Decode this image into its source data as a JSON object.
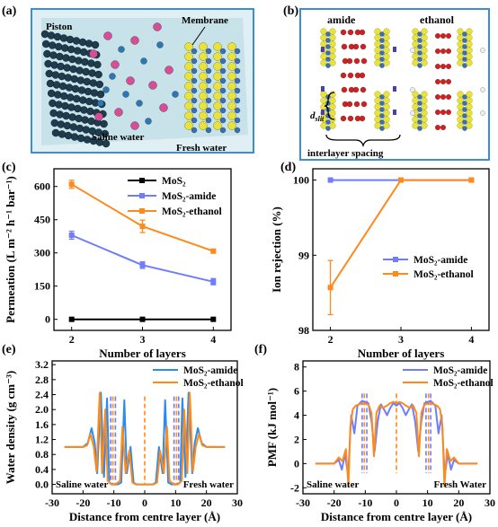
{
  "colors": {
    "frame_blue": "#3b8fd0",
    "black": "#000000",
    "amide": "#6f7cff",
    "ethanol": "#ff8a1c",
    "water_amide": "#2a8cf0",
    "sulfur": "#e8e23a",
    "molybdenum": "#3c6fb0",
    "oxygen": "#cc2222",
    "nitrogen": "#4a3fb0",
    "ion_pink": "#d64d98",
    "ion_blue": "#2a78b8"
  },
  "panels": {
    "a": {
      "label": "(a)",
      "texts": {
        "piston": "Piston",
        "membrane": "Membrane",
        "saline": "Saline water",
        "fresh": "Fresh water"
      }
    },
    "b": {
      "label": "(b)",
      "texts": {
        "amide": "amide",
        "ethanol": "ethanol",
        "dslit": "d",
        "dslit_sub": "slit",
        "spacing": "interlayer spacing"
      }
    }
  },
  "chart_data": [
    {
      "panel": "(c)",
      "type": "line",
      "xlabel": "Number of layers",
      "ylabel": "Permeation (L m⁻² h⁻¹ bar⁻¹)",
      "x": [
        2,
        3,
        4
      ],
      "xticks": [
        "2",
        "3",
        "4"
      ],
      "ylim": [
        -50,
        680
      ],
      "yticks": [
        0,
        150,
        300,
        450,
        600
      ],
      "legend_position": "top-right",
      "series": [
        {
          "name": "MoS₂",
          "color": "#000000",
          "values": [
            0,
            0,
            0
          ],
          "errors": [
            0,
            0,
            0
          ]
        },
        {
          "name": "MoS₂-amide",
          "color": "#6f7cff",
          "values": [
            380,
            245,
            170
          ],
          "errors": [
            18,
            15,
            14
          ]
        },
        {
          "name": "MoS₂-ethanol",
          "color": "#ff8a1c",
          "values": [
            610,
            420,
            308
          ],
          "errors": [
            18,
            28,
            8
          ]
        }
      ]
    },
    {
      "panel": "(d)",
      "type": "line",
      "xlabel": "Number of layers",
      "ylabel": "Ion rejection (%)",
      "x": [
        2,
        3,
        4
      ],
      "xticks": [
        "2",
        "3",
        "4"
      ],
      "ylim": [
        98,
        100.15
      ],
      "yticks": [
        98,
        99,
        100
      ],
      "legend_position": "center-right",
      "series": [
        {
          "name": "MoS₂-amide",
          "color": "#6f7cff",
          "values": [
            100,
            100,
            100
          ],
          "errors": [
            0,
            0,
            0
          ]
        },
        {
          "name": "MoS₂-ethanol",
          "color": "#ff8a1c",
          "values": [
            98.57,
            100,
            100
          ],
          "errors": [
            0.36,
            0,
            0
          ]
        }
      ]
    },
    {
      "panel": "(e)",
      "type": "line",
      "xlabel": "Distance from centre layer (Å)",
      "ylabel": "Water density (g cm⁻³)",
      "xlim": [
        -30,
        30
      ],
      "xticks": [
        -30,
        -20,
        -10,
        0,
        10,
        20,
        30
      ],
      "ylim": [
        -0.25,
        3.3
      ],
      "yticks": [
        0.0,
        0.4,
        0.8,
        1.2,
        1.6,
        2.0,
        2.4,
        2.8,
        3.2
      ],
      "legend_position": "top-right",
      "annotations": [
        "Saline water",
        "Fresh water"
      ],
      "series": [
        {
          "name": "MoS₂-amide",
          "color": "#2a8cf0",
          "x": [
            -26,
            -20,
            -18.5,
            -17.2,
            -16.2,
            -15.4,
            -14.2,
            -13.2,
            -12.2,
            -11.5,
            -10.2,
            -8.8,
            -7.6,
            -6.6,
            -5.8,
            -4.6,
            -3.6,
            -2.6,
            -1.6,
            -0.4,
            0.4,
            1.6,
            2.6,
            3.6,
            4.6,
            5.8,
            6.6,
            7.6,
            8.8,
            10.2,
            11.5,
            12.2,
            13.2,
            14.2,
            15.4,
            16.2,
            17.2,
            18.5,
            20,
            26
          ],
          "y": [
            1.0,
            1.0,
            1.1,
            1.5,
            1.1,
            0.3,
            2.45,
            0.2,
            2.3,
            0.05,
            0.0,
            0.0,
            0.05,
            2.25,
            0.3,
            1.0,
            0.05,
            0.0,
            0.0,
            0.0,
            0.0,
            0.0,
            0.0,
            0.05,
            1.0,
            0.3,
            2.25,
            0.05,
            0.0,
            0.0,
            0.05,
            2.3,
            0.2,
            2.45,
            0.3,
            1.1,
            1.5,
            1.1,
            1.0,
            1.0
          ]
        },
        {
          "name": "MoS₂-ethanol",
          "color": "#ff8a1c",
          "x": [
            -26,
            -20,
            -18.6,
            -17.6,
            -16.5,
            -15.6,
            -14.6,
            -13.8,
            -12.8,
            -12.0,
            -10.8,
            -9.4,
            -8.0,
            -7.2,
            -6.2,
            -5.0,
            -4.0,
            -2.8,
            -1.6,
            -0.4,
            0.4,
            1.6,
            2.8,
            4.0,
            5.0,
            6.2,
            7.2,
            8.0,
            9.4,
            10.8,
            12.0,
            12.8,
            13.8,
            14.6,
            15.6,
            16.5,
            17.6,
            18.6,
            20,
            26
          ],
          "y": [
            1.0,
            1.0,
            1.05,
            1.35,
            1.0,
            0.35,
            2.45,
            0.3,
            2.0,
            0.1,
            0.0,
            0.0,
            0.1,
            1.55,
            0.3,
            0.9,
            0.05,
            0.0,
            0.0,
            0.0,
            0.0,
            0.0,
            0.0,
            0.05,
            0.9,
            0.3,
            1.55,
            0.1,
            0.0,
            0.0,
            0.1,
            2.0,
            0.3,
            2.45,
            0.35,
            1.0,
            1.35,
            1.05,
            1.0,
            1.0
          ]
        }
      ],
      "vlines": [
        {
          "color": "#6f7cff",
          "x": [
            -11.0,
            -9.5,
            9.5,
            11.0
          ]
        },
        {
          "color": "#ff8a1c",
          "x": [
            -10.3,
            0,
            10.3
          ]
        }
      ]
    },
    {
      "panel": "(f)",
      "type": "line",
      "xlabel": "Distance from centre layer (Å)",
      "ylabel": "PMF (kJ mol⁻¹)",
      "xlim": [
        -30,
        30
      ],
      "xticks": [
        -30,
        -20,
        -10,
        0,
        10,
        20,
        30
      ],
      "ylim": [
        -2.5,
        8.5
      ],
      "yticks": [
        -2,
        0,
        2,
        4,
        6,
        8
      ],
      "legend_position": "top-right",
      "annotations": [
        "Saline water",
        "Fresh Water"
      ],
      "series": [
        {
          "name": "MoS₂-amide",
          "color": "#6f7cff",
          "x": [
            -26,
            -20,
            -18.5,
            -17.5,
            -16.5,
            -15.5,
            -14.5,
            -13.5,
            -12.5,
            -11,
            -9,
            -8,
            -7,
            -6,
            -5,
            -4,
            -3,
            -2,
            -1,
            0,
            1,
            2,
            3,
            4,
            5,
            6,
            7,
            8,
            9,
            11,
            12.5,
            13.5,
            14.5,
            15.5,
            16.5,
            17.5,
            18.5,
            20,
            26
          ],
          "y": [
            0,
            0,
            0.3,
            -0.5,
            0.8,
            -1.0,
            4.0,
            2.5,
            4.8,
            5.2,
            5.0,
            3.5,
            1.0,
            3.5,
            4.9,
            4.5,
            4.0,
            4.6,
            5.0,
            4.8,
            5.0,
            4.6,
            4.0,
            4.5,
            4.9,
            3.5,
            1.0,
            3.5,
            5.0,
            5.2,
            4.8,
            2.5,
            4.0,
            -1.0,
            0.8,
            -0.5,
            0.3,
            0,
            0
          ]
        },
        {
          "name": "MoS₂-ethanol",
          "color": "#ff8a1c",
          "x": [
            -26,
            -20,
            -18.5,
            -17.3,
            -16.2,
            -15.4,
            -14.8,
            -14,
            -13,
            -11,
            -9,
            -8,
            -7.2,
            -6.4,
            -5.4,
            -4.4,
            -3,
            -2,
            -1,
            0,
            1,
            2,
            3,
            4.4,
            5.4,
            6.4,
            7.2,
            8,
            9,
            11,
            13,
            14,
            14.8,
            15.4,
            16.2,
            17.3,
            18.5,
            20,
            26
          ],
          "y": [
            0,
            0,
            0.5,
            0.2,
            1.2,
            -1.9,
            3.0,
            4.5,
            4.8,
            5.0,
            4.9,
            4.2,
            0.6,
            4.2,
            4.8,
            4.6,
            4.8,
            5.0,
            5.1,
            5.0,
            5.1,
            5.0,
            4.8,
            4.6,
            4.8,
            4.2,
            0.6,
            4.2,
            4.9,
            5.0,
            4.8,
            4.5,
            3.0,
            -1.9,
            1.2,
            0.2,
            0.5,
            0,
            0
          ]
        }
      ],
      "vlines": [
        {
          "color": "#6f7cff",
          "x": [
            -11.0,
            -9.5,
            9.5,
            11.0
          ]
        },
        {
          "color": "#ff8a1c",
          "x": [
            -10.3,
            0,
            10.3
          ]
        }
      ]
    }
  ]
}
